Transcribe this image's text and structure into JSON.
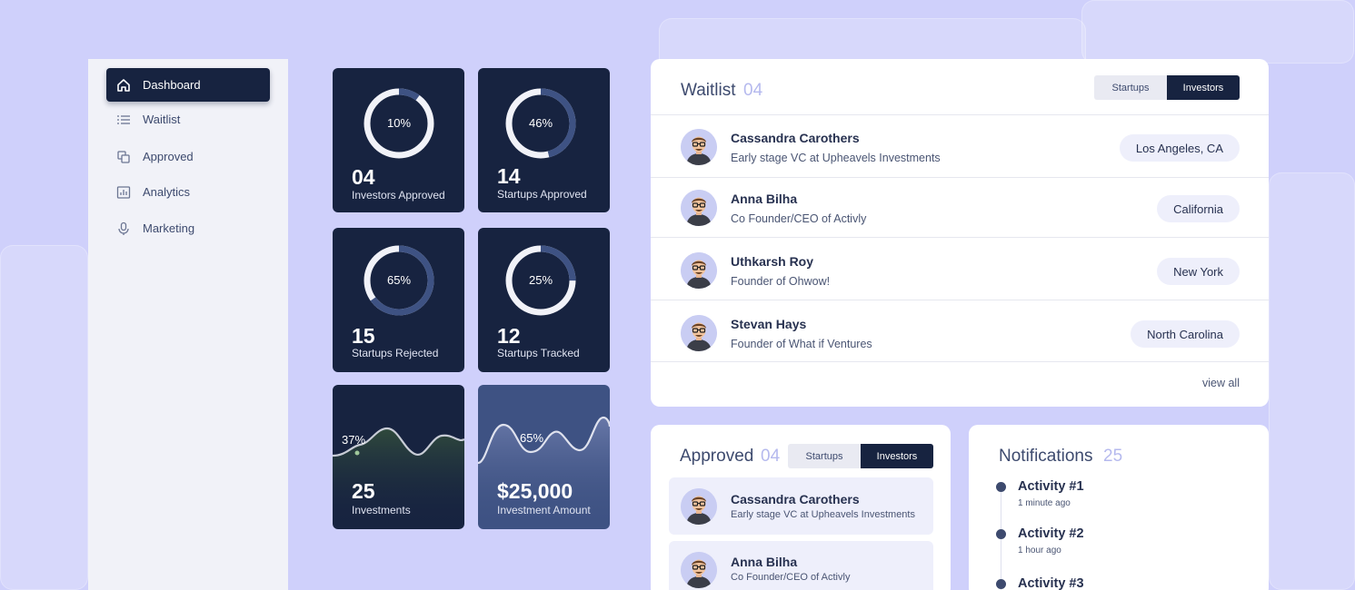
{
  "sidebar": {
    "items": [
      {
        "label": "Dashboard",
        "icon": "home-icon",
        "active": true
      },
      {
        "label": "Waitlist",
        "icon": "list-icon",
        "active": false
      },
      {
        "label": "Approved",
        "icon": "copy-icon",
        "active": false
      },
      {
        "label": "Analytics",
        "icon": "bar-chart-icon",
        "active": false
      },
      {
        "label": "Marketing",
        "icon": "microphone-icon",
        "active": false
      }
    ]
  },
  "stats": [
    {
      "percent": "10%",
      "fraction": 0.1,
      "value": "04",
      "label": "Investors Approved"
    },
    {
      "percent": "46%",
      "fraction": 0.46,
      "value": "14",
      "label": "Startups Approved"
    },
    {
      "percent": "65%",
      "fraction": 0.65,
      "value": "15",
      "label": "Startups Rejected"
    },
    {
      "percent": "25%",
      "fraction": 0.25,
      "value": "12",
      "label": "Startups Tracked"
    },
    {
      "percent": "37%",
      "value": "25",
      "label": "Investments"
    },
    {
      "percent": "65%",
      "value": "$25,000",
      "label": "Investment Amount"
    }
  ],
  "waitlist": {
    "title": "Waitlist",
    "count": "04",
    "toggle": {
      "left": "Startups",
      "right": "Investors"
    },
    "rows": [
      {
        "name": "Cassandra Carothers",
        "sub": "Early stage VC at Upheavels Investments",
        "location": "Los Angeles, CA"
      },
      {
        "name": "Anna Bilha",
        "sub": "Co Founder/CEO of Activly",
        "location": "California"
      },
      {
        "name": "Uthkarsh Roy",
        "sub": "Founder of Ohwow!",
        "location": "New York"
      },
      {
        "name": "Stevan Hays",
        "sub": "Founder of What if Ventures",
        "location": "North Carolina"
      }
    ],
    "view_all": "view all"
  },
  "approved": {
    "title": "Approved",
    "count": "04",
    "toggle": {
      "left": "Startups",
      "right": "Investors"
    },
    "rows": [
      {
        "name": "Cassandra Carothers",
        "sub": "Early stage VC at Upheavels Investments"
      },
      {
        "name": "Anna Bilha",
        "sub": "Co Founder/CEO of Activly"
      }
    ]
  },
  "notifications": {
    "title": "Notifications",
    "count": "25",
    "items": [
      {
        "name": "Activity #1",
        "time": "1 minute ago"
      },
      {
        "name": "Activity #2",
        "time": "1 hour ago"
      },
      {
        "name": "Activity #3",
        "time": ""
      }
    ]
  },
  "colors": {
    "navy": "#172340",
    "background": "#cfd0fb",
    "accent": "#b5b9ee",
    "card_light": "#3e5283"
  }
}
